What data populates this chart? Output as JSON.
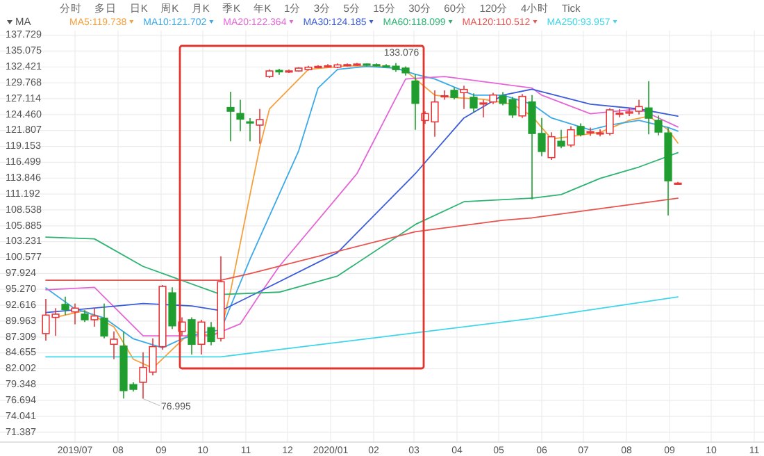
{
  "chart_data": {
    "type": "candlestick",
    "legend": "top",
    "legend_title": "MA",
    "grid": true,
    "annotations": [
      "分时",
      "多日",
      "日K",
      "周K",
      "月K",
      "季K",
      "年K",
      "1分",
      "3分",
      "5分",
      "15分",
      "30分",
      "60分",
      "120分",
      "4小时",
      "Tick",
      {
        "text": "76.995",
        "x": "2019-08-19",
        "y": 76.995
      },
      {
        "text": "133.076",
        "x": "2020-02-17",
        "y": 133.076
      }
    ],
    "xlim": [
      "2019-05-08",
      "2020-11-08"
    ],
    "xticks": [
      {
        "value": "2019-07-01",
        "label": "2019/07"
      },
      {
        "value": "2019-08-01",
        "label": "08"
      },
      {
        "value": "2019-09-01",
        "label": "09"
      },
      {
        "value": "2019-10-01",
        "label": "10"
      },
      {
        "value": "2019-11-01",
        "label": "11"
      },
      {
        "value": "2019-12-01",
        "label": "12"
      },
      {
        "value": "2020-01-01",
        "label": "2020/01"
      },
      {
        "value": "2020-02-01",
        "label": "02"
      },
      {
        "value": "2020-03-01",
        "label": "03"
      },
      {
        "value": "2020-04-01",
        "label": "04"
      },
      {
        "value": "2020-05-01",
        "label": "05"
      },
      {
        "value": "2020-06-01",
        "label": "06"
      },
      {
        "value": "2020-07-01",
        "label": "07"
      },
      {
        "value": "2020-08-01",
        "label": "08"
      },
      {
        "value": "2020-09-01",
        "label": "09"
      },
      {
        "value": "2020-10-01",
        "label": "10"
      },
      {
        "value": "2020-11-01",
        "label": "11"
      }
    ],
    "ylim": [
      69.75,
      138.49
    ],
    "yticks": [
      71.387,
      74.041,
      76.694,
      79.348,
      82.002,
      84.655,
      87.309,
      89.963,
      92.616,
      {
        "value": 95.27,
        "label": "95.270"
      },
      97.924,
      100.577,
      103.231,
      105.885,
      108.538,
      111.192,
      113.846,
      116.499,
      119.153,
      121.807,
      {
        "value": 124.46,
        "label": "124.460"
      },
      127.114,
      129.768,
      132.421,
      135.075,
      137.729
    ],
    "x": [
      "2019-06-10",
      "2019-06-17",
      "2019-06-24",
      "2019-07-01",
      "2019-07-08",
      "2019-07-15",
      "2019-07-22",
      "2019-07-29",
      "2019-08-05",
      "2019-08-12",
      "2019-08-19",
      "2019-08-26",
      "2019-09-02",
      "2019-09-09",
      "2019-09-16",
      "2019-09-23",
      "2019-09-30",
      "2019-10-07",
      "2019-10-14",
      "2019-10-21",
      "2019-10-28",
      "2019-11-04",
      "2019-11-11",
      "2019-11-18",
      "2019-11-25",
      "2019-12-02",
      "2019-12-09",
      "2019-12-16",
      "2019-12-23",
      "2019-12-30",
      "2020-01-06",
      "2020-01-13",
      "2020-01-20",
      "2020-01-27",
      "2020-02-03",
      "2020-02-10",
      "2020-02-17",
      "2020-02-24",
      "2020-03-02",
      "2020-03-09",
      "2020-03-16",
      "2020-03-23",
      "2020-03-30",
      "2020-04-06",
      "2020-04-13",
      "2020-04-20",
      "2020-04-27",
      "2020-05-04",
      "2020-05-11",
      "2020-05-18",
      "2020-05-25",
      "2020-06-01",
      "2020-06-08",
      "2020-06-15",
      "2020-06-22",
      "2020-06-29",
      "2020-07-06",
      "2020-07-13",
      "2020-07-20",
      "2020-07-27",
      "2020-08-03",
      "2020-08-10",
      "2020-08-17",
      "2020-08-24",
      "2020-08-31",
      "2020-09-07"
    ],
    "ohlc": [
      [
        87.87,
        93.67,
        86.7,
        90.96
      ],
      [
        90.58,
        92.12,
        87.48,
        91.12
      ],
      [
        92.74,
        94.06,
        90.96,
        91.89
      ],
      [
        91.5,
        92.9,
        89.42,
        92.12
      ],
      [
        91.12,
        91.74,
        89.8,
        90.19
      ],
      [
        90.19,
        92.12,
        89.03,
        90.81
      ],
      [
        90.43,
        92.9,
        87.09,
        87.48
      ],
      [
        86.09,
        88.25,
        83.61,
        86.94
      ],
      [
        85.78,
        88.25,
        77.03,
        78.35
      ],
      [
        79.35,
        79.74,
        78.19,
        78.58
      ],
      [
        79.74,
        84.77,
        76.995,
        82.22
      ],
      [
        81.44,
        87.09,
        80.9,
        85.7
      ],
      [
        85.7,
        95.99,
        85.16,
        95.76
      ],
      [
        94.68,
        95.61,
        88.64,
        89.18
      ],
      [
        88.25,
        90.58,
        87.48,
        89.8
      ],
      [
        90.19,
        90.58,
        84.38,
        86.09
      ],
      [
        86.09,
        90.19,
        84.38,
        89.8
      ],
      [
        88.87,
        89.8,
        85.93,
        86.55
      ],
      [
        87.09,
        100.79,
        86.55,
        96.54
      ],
      [
        125.64,
        128.27,
        119.99,
        125.02
      ],
      [
        124.63,
        126.95,
        121.69,
        123.7
      ],
      [
        123.24,
        123.86,
        119.99,
        123.09
      ],
      [
        122.7,
        125.41,
        119.6,
        123.63
      ],
      [
        130.82,
        131.98,
        130.59,
        131.75
      ],
      [
        131.83,
        132.1,
        131.1,
        131.6
      ],
      [
        131.6,
        131.98,
        131.4,
        131.75
      ],
      [
        131.75,
        132.4,
        131.6,
        132.22
      ],
      [
        131.98,
        132.6,
        131.8,
        132.37
      ],
      [
        132.4,
        132.7,
        132.2,
        132.5
      ],
      [
        132.5,
        132.9,
        132.3,
        132.6
      ],
      [
        132.37,
        133.0,
        132.2,
        132.76
      ],
      [
        132.7,
        133.0,
        132.5,
        132.8
      ],
      [
        132.8,
        133.1,
        132.6,
        132.9
      ],
      [
        132.9,
        133.0,
        132.5,
        132.8
      ],
      [
        132.8,
        133.0,
        132.5,
        132.6
      ],
      [
        132.6,
        132.9,
        132.3,
        132.5
      ],
      [
        132.53,
        133.076,
        131.6,
        131.98
      ],
      [
        132.22,
        132.5,
        130.98,
        131.44
      ],
      [
        130.05,
        131.21,
        121.92,
        126.34
      ],
      [
        123.47,
        125.0,
        122.9,
        124.63
      ],
      [
        123.24,
        128.5,
        120.76,
        126.57
      ],
      [
        127.5,
        128.5,
        126.95,
        127.6
      ],
      [
        128.5,
        129.0,
        127.0,
        127.34
      ],
      [
        128.12,
        129.28,
        125.41,
        128.66
      ],
      [
        127.34,
        128.0,
        124.8,
        125.56
      ],
      [
        126.3,
        126.95,
        124.0,
        126.4
      ],
      [
        126.57,
        128.1,
        126.2,
        127.73
      ],
      [
        127.57,
        128.2,
        126.0,
        126.34
      ],
      [
        126.95,
        127.4,
        123.9,
        124.4
      ],
      [
        124.24,
        127.9,
        123.9,
        127.5
      ],
      [
        126.57,
        127.73,
        110.31,
        121.3
      ],
      [
        121.3,
        123.9,
        117.5,
        118.3
      ],
      [
        117.28,
        121.5,
        116.9,
        120.76
      ],
      [
        119.99,
        121.92,
        118.83,
        119.22
      ],
      [
        119.37,
        122.5,
        119.0,
        121.92
      ],
      [
        122.47,
        123.0,
        120.8,
        121.15
      ],
      [
        121.5,
        122.3,
        120.9,
        121.6
      ],
      [
        121.3,
        122.0,
        120.8,
        121.4
      ],
      [
        121.3,
        125.5,
        121.0,
        125.25
      ],
      [
        124.6,
        125.4,
        124.0,
        124.7
      ],
      [
        124.7,
        125.6,
        124.2,
        124.9
      ],
      [
        125.02,
        126.95,
        124.48,
        125.79
      ],
      [
        125.56,
        130.05,
        121.15,
        123.86
      ],
      [
        123.47,
        124.3,
        121.0,
        121.54
      ],
      [
        121.38,
        122.3,
        107.6,
        113.41
      ],
      [
        112.9,
        113.2,
        112.7,
        113.0
      ]
    ],
    "series": [
      {
        "type": "line",
        "name": "MA5:119.738",
        "color": "#f5a03c",
        "x": [
          "2019-06-17",
          "2019-07-08",
          "2019-07-29",
          "2019-08-12",
          "2019-08-26",
          "2019-09-09",
          "2019-09-23",
          "2019-10-07",
          "2019-10-14",
          "2019-10-21",
          "2019-10-28",
          "2019-11-04",
          "2019-11-11",
          "2019-11-18",
          "2019-12-16",
          "2020-01-13",
          "2020-02-10",
          "2020-02-24",
          "2020-03-02",
          "2020-03-16",
          "2020-03-30",
          "2020-04-20",
          "2020-05-11",
          "2020-05-25",
          "2020-06-08",
          "2020-06-22",
          "2020-07-13",
          "2020-08-03",
          "2020-08-17",
          "2020-08-31",
          "2020-09-07"
        ],
        "values": [
          90.6,
          91.7,
          89.0,
          83.6,
          82.1,
          85.2,
          88.3,
          87.5,
          88.3,
          95,
          103,
          111.1,
          119,
          125.4,
          132.0,
          132.6,
          132.5,
          131.8,
          130.4,
          127.7,
          127.3,
          127.0,
          126.2,
          124.2,
          120.4,
          120.8,
          121.5,
          123.5,
          124.2,
          121.9,
          119.7
        ]
      },
      {
        "type": "line",
        "name": "MA10:121.702",
        "color": "#3aa9e8",
        "x": [
          "2019-06-10",
          "2019-07-01",
          "2019-07-22",
          "2019-08-12",
          "2019-09-02",
          "2019-09-16",
          "2019-09-30",
          "2019-10-14",
          "2019-11-04",
          "2019-12-09",
          "2019-12-23",
          "2020-01-06",
          "2020-01-27",
          "2020-02-17",
          "2020-03-02",
          "2020-03-16",
          "2020-04-13",
          "2020-05-04",
          "2020-05-25",
          "2020-06-08",
          "2020-07-06",
          "2020-07-20",
          "2020-08-10",
          "2020-08-31",
          "2020-09-07"
        ],
        "values": [
          95.5,
          92.0,
          90.5,
          87.0,
          85.5,
          87.0,
          88.0,
          88.5,
          100.3,
          118.4,
          128.9,
          132.0,
          132.5,
          132.2,
          131.2,
          130.4,
          127.7,
          127.7,
          126.2,
          123.9,
          121.9,
          122.7,
          123.5,
          122.3,
          121.7
        ]
      },
      {
        "type": "line",
        "name": "MA20:122.364",
        "color": "#e466d6",
        "x": [
          "2019-06-10",
          "2019-07-15",
          "2019-08-19",
          "2019-10-07",
          "2019-10-28",
          "2019-11-11",
          "2019-11-25",
          "2020-01-20",
          "2020-02-24",
          "2020-03-23",
          "2020-05-25",
          "2020-06-01",
          "2020-07-06",
          "2020-08-10",
          "2020-09-07"
        ],
        "values": [
          95.2,
          95.6,
          87.5,
          87.5,
          89.5,
          94.4,
          99.1,
          114.6,
          130.4,
          130.8,
          128.9,
          127.7,
          124.6,
          125.4,
          122.4
        ]
      },
      {
        "type": "line",
        "name": "MA30:124.185",
        "color": "#3b5bd9",
        "x": [
          "2019-06-10",
          "2019-08-19",
          "2019-09-23",
          "2019-10-14",
          "2019-11-04",
          "2020-01-06",
          "2020-03-02",
          "2020-04-06",
          "2020-05-04",
          "2020-05-25",
          "2020-07-06",
          "2020-08-10",
          "2020-09-07"
        ],
        "values": [
          91.4,
          92.9,
          92.5,
          91.7,
          94.1,
          101.4,
          114.6,
          123.9,
          127.7,
          128.7,
          126.2,
          125.4,
          124.2
        ]
      },
      {
        "type": "line",
        "name": "MA60:118.099",
        "color": "#2db372",
        "x": [
          "2019-06-10",
          "2019-07-15",
          "2019-08-19",
          "2019-10-14",
          "2019-11-25",
          "2020-01-06",
          "2020-03-02",
          "2020-04-06",
          "2020-05-25",
          "2020-06-15",
          "2020-07-13",
          "2020-08-10",
          "2020-09-07"
        ],
        "values": [
          104.0,
          103.7,
          99.1,
          94.4,
          94.8,
          97.5,
          106.1,
          109.9,
          110.5,
          111.1,
          113.8,
          115.7,
          118.1
        ]
      },
      {
        "type": "line",
        "name": "MA120:110.512",
        "color": "#e8534f",
        "x": [
          "2019-06-10",
          "2019-10-14",
          "2019-11-04",
          "2020-03-02",
          "2020-05-04",
          "2020-05-25",
          "2020-09-07"
        ],
        "values": [
          96.8,
          96.8,
          97.9,
          104.9,
          106.8,
          107.2,
          110.5
        ]
      },
      {
        "type": "line",
        "name": "MA250:93.957",
        "color": "#3ed6e8",
        "x": [
          "2019-06-10",
          "2019-10-14",
          "2019-11-25",
          "2020-05-25",
          "2020-09-07"
        ],
        "values": [
          84.0,
          84.0,
          85.2,
          90.4,
          94.0
        ]
      }
    ]
  }
}
